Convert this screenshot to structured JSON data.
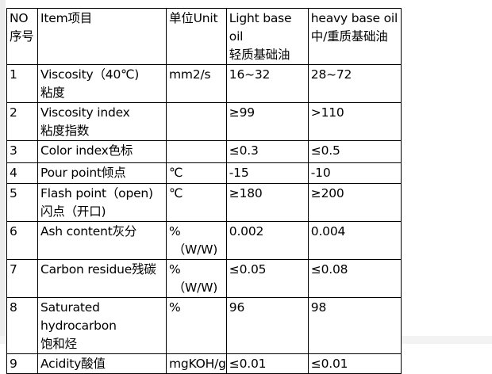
{
  "table": {
    "headers": [
      "NO\n序号",
      "Item项目",
      "单位Unit",
      "Light base oil\n轻质基础油",
      "heavy base oil\n中/重质基础油"
    ],
    "rows": [
      [
        "1",
        "Viscosity（40℃)\n粘度",
        "mm2/s",
        "16~32",
        "28~72"
      ],
      [
        "2",
        "Viscosity index\n粘度指数",
        "",
        "≥99",
        ">110"
      ],
      [
        "3",
        "Color index色标",
        "",
        "≤0.3",
        "≤0.5"
      ],
      [
        "4",
        "Pour point倾点",
        "℃",
        "-15",
        "-10"
      ],
      [
        "5",
        "Flash point（open)\n闪点（开口)",
        "℃",
        "≥180",
        "≥200"
      ],
      [
        "6",
        "Ash content灰分",
        "%\n （W/W)",
        "0.002",
        "0.004"
      ],
      [
        "7",
        "Carbon residue残碳",
        "%\n （W/W)",
        "≤0.05",
        "≤0.08"
      ],
      [
        "8",
        "Saturated hydrocarbon\n饱和烃",
        "%",
        "96",
        "98"
      ],
      [
        "9",
        "Acidity酸值",
        "mgKOH/g",
        "≤0.01",
        "≤0.01"
      ]
    ]
  }
}
